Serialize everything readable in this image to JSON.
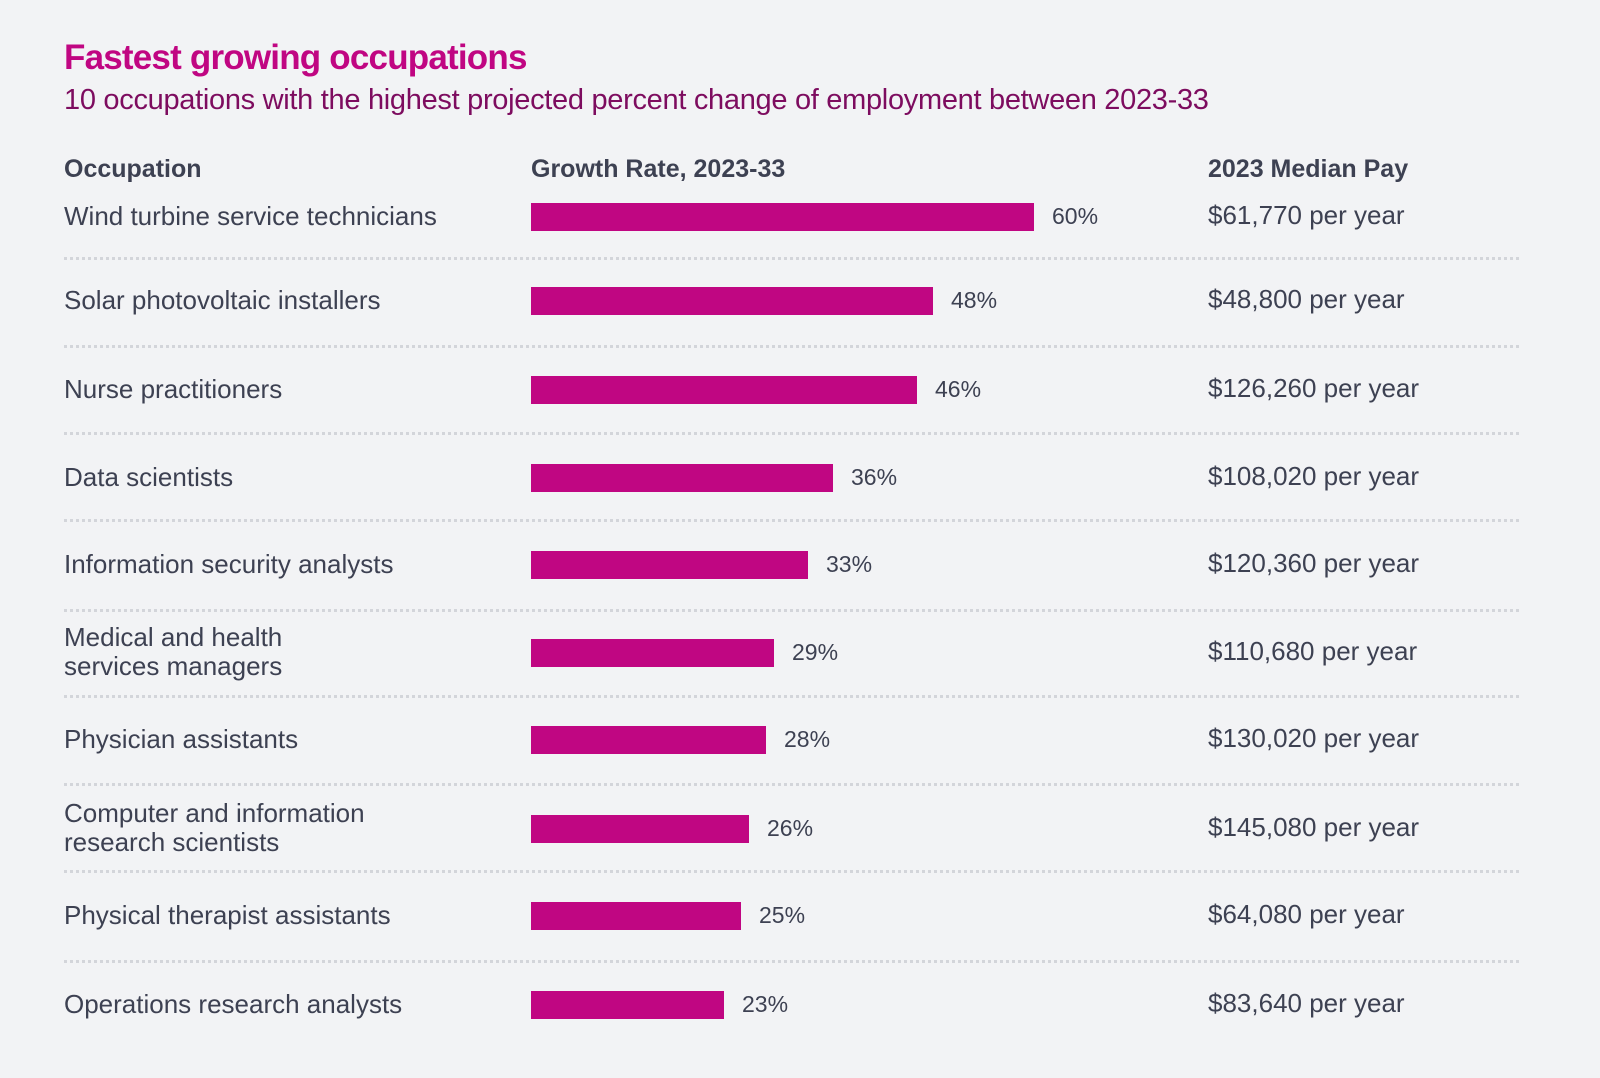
{
  "title": "Fastest growing occupations",
  "subtitle": "10 occupations with the highest projected percent change of employment between 2023-33",
  "headers": {
    "occupation": "Occupation",
    "growth": "Growth Rate, 2023-33",
    "pay": "2023 Median Pay"
  },
  "colors": {
    "bar": "#c00682",
    "title": "#c00682",
    "subtitle": "#7d0c5f",
    "text": "#3d4152"
  },
  "chart_data": {
    "type": "bar",
    "orientation": "horizontal",
    "title": "Fastest growing occupations",
    "subtitle": "10 occupations with the highest projected percent change of employment between 2023-33",
    "xlabel": "Growth Rate, 2023-33",
    "ylabel": "Occupation",
    "xlim": [
      0,
      60
    ],
    "grid": false,
    "legend": "none",
    "categories": [
      "Wind turbine service technicians",
      "Solar photovoltaic installers",
      "Nurse practitioners",
      "Data scientists",
      "Information security analysts",
      "Medical and health services managers",
      "Physician assistants",
      "Computer and information research scientists",
      "Physical therapist assistants",
      "Operations research analysts"
    ],
    "values": [
      60,
      48,
      46,
      36,
      33,
      29,
      28,
      26,
      25,
      23
    ],
    "value_labels": [
      "60%",
      "48%",
      "46%",
      "36%",
      "33%",
      "29%",
      "28%",
      "26%",
      "25%",
      "23%"
    ],
    "extra_column": {
      "name": "2023 Median Pay",
      "values": [
        "$61,770 per year",
        "$48,800 per year",
        "$126,260 per year",
        "$108,020 per year",
        "$120,360 per year",
        "$110,680 per year",
        "$130,020 per year",
        "$145,080 per year",
        "$64,080 per year",
        "$83,640 per year"
      ]
    }
  },
  "rows": [
    {
      "occupation_lines": [
        "Wind turbine service technicians"
      ],
      "growth": 60,
      "growth_label": "60%",
      "pay": "$61,770 per year"
    },
    {
      "occupation_lines": [
        "Solar photovoltaic installers"
      ],
      "growth": 48,
      "growth_label": "48%",
      "pay": "$48,800 per year"
    },
    {
      "occupation_lines": [
        "Nurse practitioners"
      ],
      "growth": 46,
      "growth_label": "46%",
      "pay": "$126,260 per year"
    },
    {
      "occupation_lines": [
        "Data scientists"
      ],
      "growth": 36,
      "growth_label": "36%",
      "pay": "$108,020 per year"
    },
    {
      "occupation_lines": [
        "Information security analysts"
      ],
      "growth": 33,
      "growth_label": "33%",
      "pay": "$120,360 per year"
    },
    {
      "occupation_lines": [
        "Medical and health",
        "services managers"
      ],
      "growth": 29,
      "growth_label": "29%",
      "pay": "$110,680 per year"
    },
    {
      "occupation_lines": [
        "Physician assistants"
      ],
      "growth": 28,
      "growth_label": "28%",
      "pay": "$130,020 per year"
    },
    {
      "occupation_lines": [
        "Computer and information",
        "research scientists"
      ],
      "growth": 26,
      "growth_label": "26%",
      "pay": "$145,080 per year"
    },
    {
      "occupation_lines": [
        "Physical therapist assistants"
      ],
      "growth": 25,
      "growth_label": "25%",
      "pay": "$64,080 per year"
    },
    {
      "occupation_lines": [
        "Operations research analysts"
      ],
      "growth": 23,
      "growth_label": "23%",
      "pay": "$83,640 per year"
    }
  ]
}
